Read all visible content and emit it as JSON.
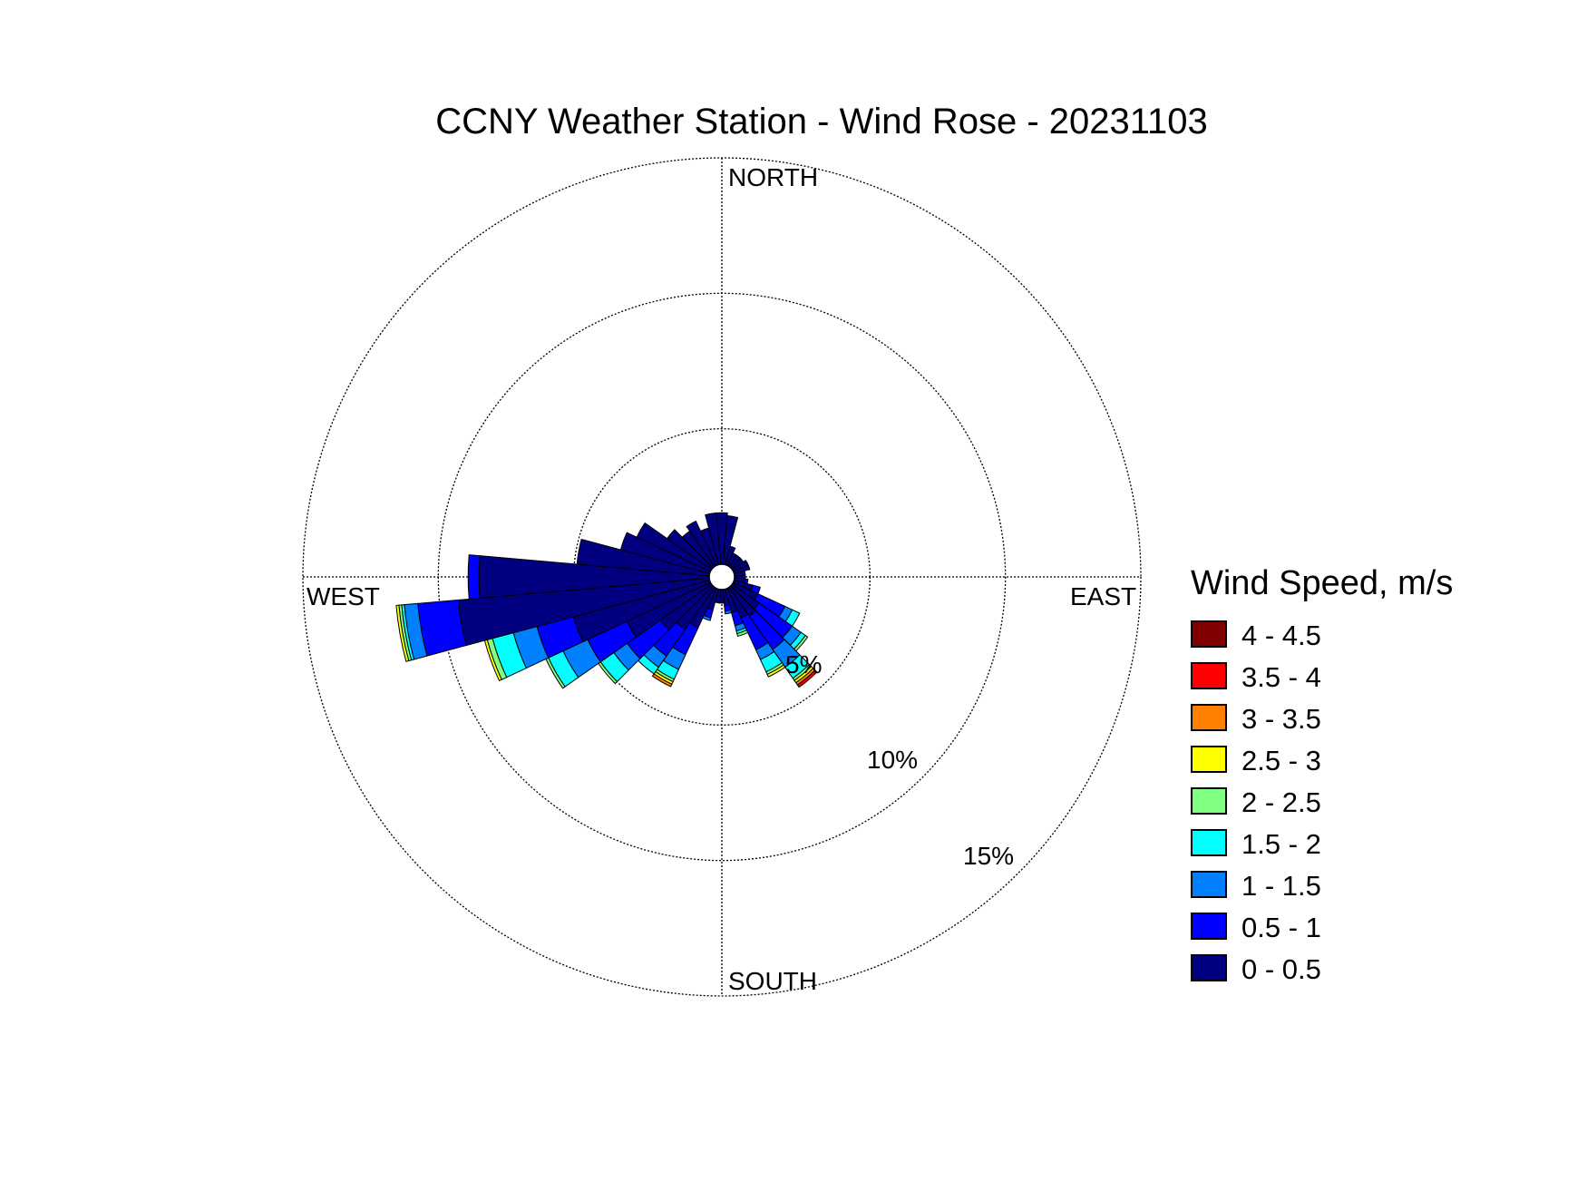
{
  "chart_data": {
    "type": "wind-rose",
    "title": "CCNY Weather Station - Wind Rose - 20231103",
    "directions_label": [
      "NORTH",
      "EAST",
      "SOUTH",
      "WEST"
    ],
    "radial_ticks": [
      5,
      10,
      15
    ],
    "radial_tick_labels": [
      "5%",
      "10%",
      "15%"
    ],
    "rmax": 15,
    "legend_title": "Wind Speed, m/s",
    "speed_bins": [
      {
        "label": "0 - 0.5",
        "color": "#000080"
      },
      {
        "label": "0.5 - 1",
        "color": "#0000ff"
      },
      {
        "label": "1 - 1.5",
        "color": "#0080ff"
      },
      {
        "label": "1.5 - 2",
        "color": "#00ffff"
      },
      {
        "label": "2 - 2.5",
        "color": "#80ff80"
      },
      {
        "label": "2.5 - 3",
        "color": "#ffff00"
      },
      {
        "label": "3 - 3.5",
        "color": "#ff8000"
      },
      {
        "label": "3.5 - 4",
        "color": "#ff0000"
      },
      {
        "label": "4 - 4.5",
        "color": "#800000"
      }
    ],
    "sector_width_deg": 10,
    "sectors": [
      {
        "direction": 0,
        "freq": [
          1.9
        ]
      },
      {
        "direction": 10,
        "freq": [
          1.8
        ]
      },
      {
        "direction": 20,
        "freq": [
          0.7
        ]
      },
      {
        "direction": 30,
        "freq": [
          0.5
        ]
      },
      {
        "direction": 40,
        "freq": [
          0.5
        ]
      },
      {
        "direction": 50,
        "freq": [
          0.5
        ]
      },
      {
        "direction": 60,
        "freq": [
          0.6
        ]
      },
      {
        "direction": 70,
        "freq": [
          0.6
        ]
      },
      {
        "direction": 80,
        "freq": [
          0.4
        ]
      },
      {
        "direction": 90,
        "freq": [
          0.4
        ]
      },
      {
        "direction": 100,
        "freq": [
          0.4,
          0.1
        ]
      },
      {
        "direction": 110,
        "freq": [
          0.7,
          0.3
        ]
      },
      {
        "direction": 120,
        "freq": [
          1.0,
          1.1,
          0.3,
          0.3
        ]
      },
      {
        "direction": 130,
        "freq": [
          1.2,
          1.5,
          0.4,
          0.2,
          0.1
        ]
      },
      {
        "direction": 140,
        "freq": [
          1.3,
          1.5,
          0.8,
          0.5,
          0.1,
          0.1,
          0.1,
          0.1
        ]
      },
      {
        "direction": 150,
        "freq": [
          1.2,
          1.3,
          0.4,
          0.5,
          0.1,
          0.1
        ]
      },
      {
        "direction": 160,
        "freq": [
          0.9,
          0.5,
          0.2,
          0.1,
          0.1
        ]
      },
      {
        "direction": 170,
        "freq": [
          0.6,
          0.2,
          0.1
        ]
      },
      {
        "direction": 180,
        "freq": [
          0.5
        ]
      },
      {
        "direction": 190,
        "freq": [
          0.5
        ]
      },
      {
        "direction": 200,
        "freq": [
          0.8,
          0.3,
          0.1
        ]
      },
      {
        "direction": 210,
        "freq": [
          1.6,
          1.1,
          0.6,
          0.4,
          0.1,
          0.1,
          0.1
        ]
      },
      {
        "direction": 220,
        "freq": [
          1.9,
          1.2,
          0.5,
          0.3
        ]
      },
      {
        "direction": 230,
        "freq": [
          2.3,
          1.5,
          0.6,
          0.6,
          0.1
        ]
      },
      {
        "direction": 240,
        "freq": [
          3.4,
          1.6,
          1.0,
          0.6,
          0.1
        ]
      },
      {
        "direction": 250,
        "freq": [
          5.2,
          1.4,
          0.9,
          0.8,
          0.2,
          0.1
        ]
      },
      {
        "direction": 260,
        "freq": [
          9.3,
          1.5,
          0.5,
          0.1,
          0.1,
          0.1
        ]
      },
      {
        "direction": 270,
        "freq": [
          8.5,
          0.4
        ]
      },
      {
        "direction": 280,
        "freq": [
          4.9
        ]
      },
      {
        "direction": 290,
        "freq": [
          3.4
        ]
      },
      {
        "direction": 300,
        "freq": [
          3.0
        ]
      },
      {
        "direction": 310,
        "freq": [
          2.0
        ]
      },
      {
        "direction": 320,
        "freq": [
          1.6
        ]
      },
      {
        "direction": 330,
        "freq": [
          1.8
        ]
      },
      {
        "direction": 340,
        "freq": [
          1.4
        ]
      },
      {
        "direction": 350,
        "freq": [
          1.9
        ]
      }
    ]
  }
}
